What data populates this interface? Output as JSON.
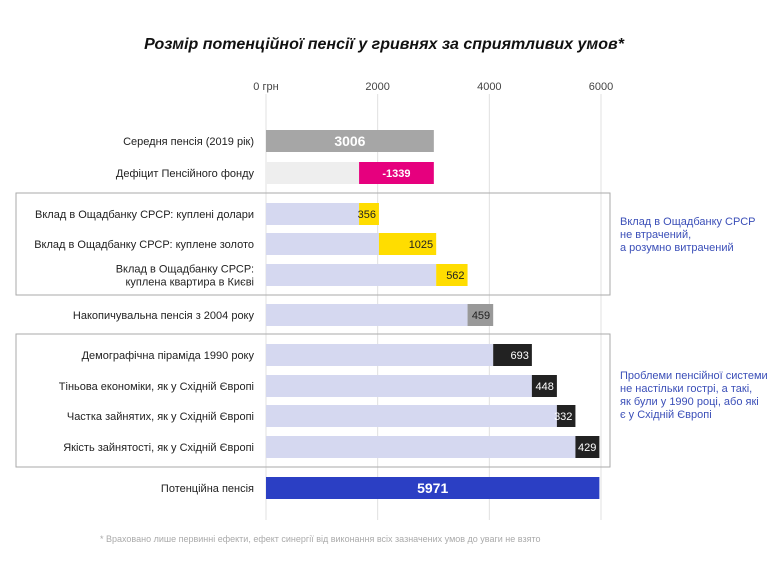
{
  "title": "Розмір потенційної пенсії у гривнях за сприятливих умов*",
  "footnote": "* Враховано лише первинні ефекти, ефект синергії від виконання всіх зазначених умов до уваги не взято",
  "chart_data": {
    "type": "bar",
    "orientation": "horizontal",
    "stacked": true,
    "xlim": [
      0,
      6000
    ],
    "xticks": [
      {
        "value": 0,
        "label": "0 грн"
      },
      {
        "value": 2000,
        "label": "2000"
      },
      {
        "value": 4000,
        "label": "4000"
      },
      {
        "value": 6000,
        "label": "6000"
      }
    ],
    "rows": [
      {
        "label": "Середня пенсія (2019 рік)",
        "base": 0,
        "value": 3006,
        "value_label": "3006",
        "color": "#a6a6a6",
        "text_color": "#ffffff",
        "bold": true,
        "big": true
      },
      {
        "label": "Дефіцит Пенсійного фонду",
        "base": 1667,
        "value": 1339,
        "value_label": "-1339",
        "color": "#e6007e",
        "text_color": "#ffffff",
        "bold": true,
        "deficit": true,
        "bg_to": 1667
      },
      {
        "label": "Вклад в Ощадбанку СРСР: куплені долари",
        "base": 1667,
        "value": 356,
        "value_label": "356",
        "color": "#ffdd00",
        "text_color": "#222222"
      },
      {
        "label": "Вклад в Ощадбанку СРСР: куплене золото",
        "base": 2023,
        "value": 1025,
        "value_label": "1025",
        "color": "#ffdd00",
        "text_color": "#222222"
      },
      {
        "label": [
          "Вклад в Ощадбанку СРСР:",
          "куплена квартира в Києві"
        ],
        "base": 3048,
        "value": 562,
        "value_label": "562",
        "color": "#ffdd00",
        "text_color": "#222222"
      },
      {
        "label": "Накопичувальна пенсія з 2004 року",
        "base": 3610,
        "value": 459,
        "value_label": "459",
        "color": "#999999",
        "text_color": "#222222"
      },
      {
        "label": "Демографічна піраміда 1990 року",
        "base": 4069,
        "value": 693,
        "value_label": "693",
        "color": "#222222",
        "text_color": "#ffffff"
      },
      {
        "label": "Тіньова економіки, як у Східній Європі",
        "base": 4762,
        "value": 448,
        "value_label": "448",
        "color": "#222222",
        "text_color": "#ffffff"
      },
      {
        "label": "Частка зайнятих, як у Східній Європі",
        "base": 5210,
        "value": 332,
        "value_label": "332",
        "color": "#222222",
        "text_color": "#ffffff"
      },
      {
        "label": "Якість зайнятості, як у Східній Європі",
        "base": 5542,
        "value": 429,
        "value_label": "429",
        "color": "#222222",
        "text_color": "#ffffff"
      },
      {
        "label": "Потенційна пенсія",
        "base": 0,
        "value": 5971,
        "value_label": "5971",
        "color": "#2b3fc4",
        "text_color": "#ffffff",
        "bold": true,
        "big": true
      }
    ],
    "groups": [
      {
        "rows": [
          2,
          4
        ],
        "annotation": [
          "Вклад в Ощадбанку СРСР",
          "не втрачений,",
          "а розумно витрачений"
        ]
      },
      {
        "rows": [
          6,
          9
        ],
        "annotation": [
          "Проблеми пенсійної системи",
          "не настільки гострі, а такі,",
          "як були у 1990 році, або які",
          "є у Східній Європі"
        ]
      }
    ],
    "colors": {
      "background_bar": "#d5d8f0",
      "deficit_background": "#eeeeee",
      "gridline": "#e0e0e0",
      "group_border": "#aaaaaa",
      "annotation_text": "#3b4fb8"
    }
  }
}
